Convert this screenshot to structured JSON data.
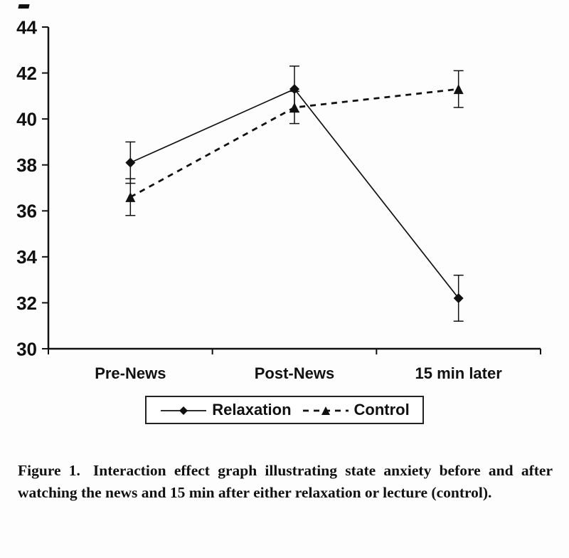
{
  "chart_data": {
    "type": "line",
    "title": "",
    "xlabel": "",
    "ylabel": "",
    "categories": [
      "Pre-News",
      "Post-News",
      "15 min later"
    ],
    "series": [
      {
        "name": "Relaxation",
        "marker": "diamond",
        "line": "solid",
        "values": [
          38.1,
          41.3,
          32.2
        ],
        "error": [
          0.9,
          1.0,
          1.0
        ]
      },
      {
        "name": "Control",
        "marker": "triangle",
        "line": "dashed",
        "values": [
          36.6,
          40.5,
          41.3
        ],
        "error": [
          0.8,
          0.7,
          0.8
        ]
      }
    ],
    "ylim": [
      30,
      44
    ],
    "yticks": [
      30,
      32,
      34,
      36,
      38,
      40,
      42,
      44
    ],
    "grid": false,
    "legend_position": "bottom",
    "error_bars": true
  },
  "colors": {
    "ink": "#111111",
    "background": "#fdfdfd"
  },
  "caption": {
    "label": "Figure 1.",
    "text": "Interaction effect graph illustrating state anxiety before and after watching the news and 15 min after either relaxation or lecture (control)."
  }
}
